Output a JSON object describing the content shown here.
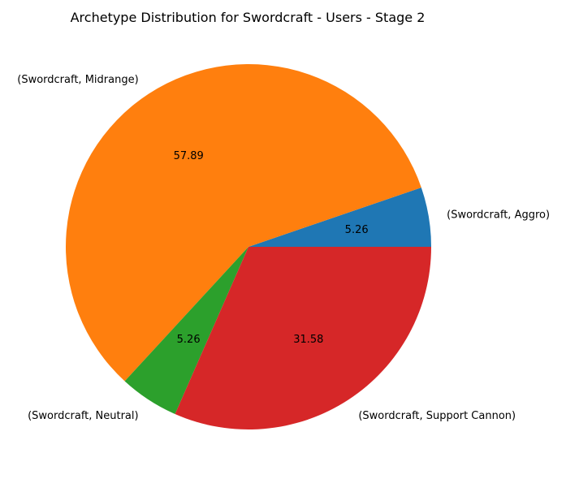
{
  "chart_data": {
    "type": "pie",
    "title": "Archetype Distribution for Swordcraft - Users - Stage 2",
    "labels": [
      "(Swordcraft, Aggro)",
      "(Swordcraft, Midrange)",
      "(Swordcraft, Neutral)",
      "(Swordcraft, Support Cannon)"
    ],
    "values": [
      5.26,
      57.89,
      5.26,
      31.58
    ],
    "value_labels": [
      "5.26",
      "57.89",
      "5.26",
      "31.58"
    ],
    "colors": [
      "#1f77b4",
      "#ff7f0e",
      "#2ca02c",
      "#d62728"
    ],
    "start_angle_deg": 0,
    "direction": "counterclockwise"
  }
}
